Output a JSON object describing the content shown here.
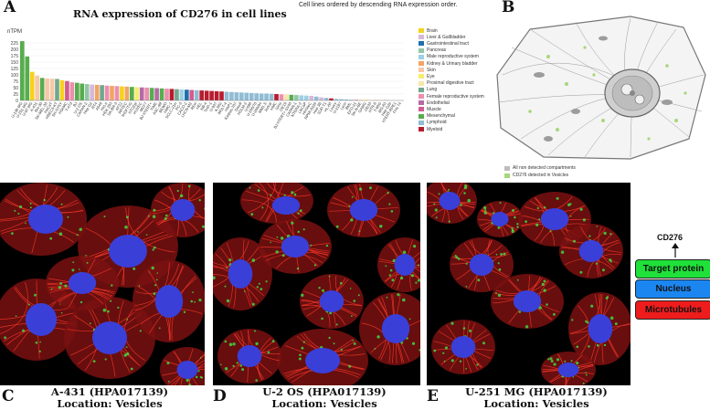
{
  "panels": {
    "A": "A",
    "B": "B",
    "C": "C",
    "D": "D",
    "E": "E"
  },
  "chart_data": {
    "type": "bar",
    "title": "RNA expression of CD276 in cell lines",
    "subtitle": "Cell lines ordered by descending RNA expression order.",
    "ylabel": "nTPM",
    "ylim": [
      0,
      250
    ],
    "yticks": [
      "0",
      "25",
      "50",
      "75",
      "100",
      "125",
      "150",
      "175",
      "200",
      "225"
    ],
    "legend_position": "right",
    "legend": [
      {
        "name": "Brain",
        "color": "#f5d21c"
      },
      {
        "name": "Liver & Gallbladder",
        "color": "#d6b8d9"
      },
      {
        "name": "Gastrointestinal tract",
        "color": "#1f6fae"
      },
      {
        "name": "Pancreas",
        "color": "#92c6a6"
      },
      {
        "name": "Male reproductive system",
        "color": "#9ecfe3"
      },
      {
        "name": "Kidney & Urinary bladder",
        "color": "#f2a466"
      },
      {
        "name": "Skin",
        "color": "#f7c7a7"
      },
      {
        "name": "Eye",
        "color": "#f7ec6c"
      },
      {
        "name": "Proximal digestive tract",
        "color": "#f7e7a8"
      },
      {
        "name": "Lung",
        "color": "#71a88e"
      },
      {
        "name": "Female reproductive system",
        "color": "#ec8fae"
      },
      {
        "name": "Endothelial",
        "color": "#b56aa6"
      },
      {
        "name": "Muscle",
        "color": "#d15b91"
      },
      {
        "name": "Mesenchymal",
        "color": "#57ad4d"
      },
      {
        "name": "Lymphoid",
        "color": "#90bcd4"
      },
      {
        "name": "Myeloid",
        "color": "#b71c2e"
      }
    ],
    "categories": [
      "U-138 MG",
      "U-251 MG",
      "U-87 MG",
      "A-431",
      "RH-30",
      "SK-MEL-30",
      "HaCaT",
      "HBEC3-KT",
      "SH-SY5Y",
      "HSkMC",
      "T-47d",
      "BJ",
      "U-2 OS",
      "CAPAN-2",
      "Hep G2",
      "RT4",
      "A549",
      "HeLa",
      "HEK 293",
      "SK-BR-3",
      "AF22",
      "RPTEC",
      "fHDF/TIG",
      "hTCEpi",
      "HUVEC",
      "MCF7",
      "BJ hTERT+",
      "TIME",
      "ASC diff",
      "BEWO",
      "HMC-1",
      "SCLC-21H",
      "PC-3",
      "CACO-2",
      "LHCN-M2",
      "REH",
      "HEL",
      "NB-4",
      "THP-1",
      "U-937",
      "K-562",
      "MOLT-4",
      "HAP1",
      "Karpas-707",
      "Daudi",
      "HDLM-2",
      "U-698",
      "U-266/70",
      "U-266/84",
      "MM1.S",
      "Jurkat",
      "HMC",
      "SiHa",
      "OE19",
      "BJ hTERT+ SV40",
      "CAPAN-1",
      "NTERA-2",
      "LNCaP",
      "HHSteC",
      "RPMI-8226",
      "Hep 3B",
      "SUP-T1",
      "HL-60",
      "Loucy",
      "U-2197",
      "Lyon",
      "BML",
      "EFO-21",
      "SK-N-BE",
      "GAMG",
      "OE33",
      "HTR-8",
      "T-98G",
      "MG-63",
      "Hep G2b",
      "hTERT-RPE1",
      "FHs 74"
    ],
    "values": [
      232,
      172,
      112,
      97,
      88,
      86,
      85,
      84,
      79,
      76,
      71,
      69,
      66,
      64,
      62,
      61,
      60,
      58,
      57,
      56,
      55,
      54,
      53,
      52,
      51,
      50,
      49,
      48,
      47,
      46,
      45,
      44,
      43,
      42,
      41,
      40,
      39,
      38,
      37,
      36,
      35,
      34,
      33,
      32,
      31,
      30,
      29,
      28,
      27,
      27,
      26,
      25,
      24,
      23,
      22,
      21,
      20,
      19,
      18,
      15,
      12,
      10,
      8,
      6,
      5,
      4,
      3,
      3,
      2,
      2,
      1,
      1,
      1,
      1,
      0,
      0,
      0
    ]
  },
  "cell_diagram": {
    "legend": [
      {
        "label": "All non detected compartments",
        "color": "#bdbdbd"
      },
      {
        "label": "CD276 detected in Vesicles",
        "color": "#a8d67a"
      }
    ]
  },
  "micrographs": [
    {
      "cell_line": "A-431 (HPA017139)",
      "location": "Location: Vesicles"
    },
    {
      "cell_line": "U-2 OS (HPA017139)",
      "location": "Location: Vesicles"
    },
    {
      "cell_line": "U-251 MG (HPA017139)",
      "location": "Location: Vesicles"
    }
  ],
  "stain_key": {
    "gene": "CD276",
    "items": [
      {
        "label": "Target protein",
        "color": "#1fe13a"
      },
      {
        "label": "Nucleus",
        "color": "#1c86f0"
      },
      {
        "label": "Microtubules",
        "color": "#ee1c1c"
      }
    ]
  }
}
